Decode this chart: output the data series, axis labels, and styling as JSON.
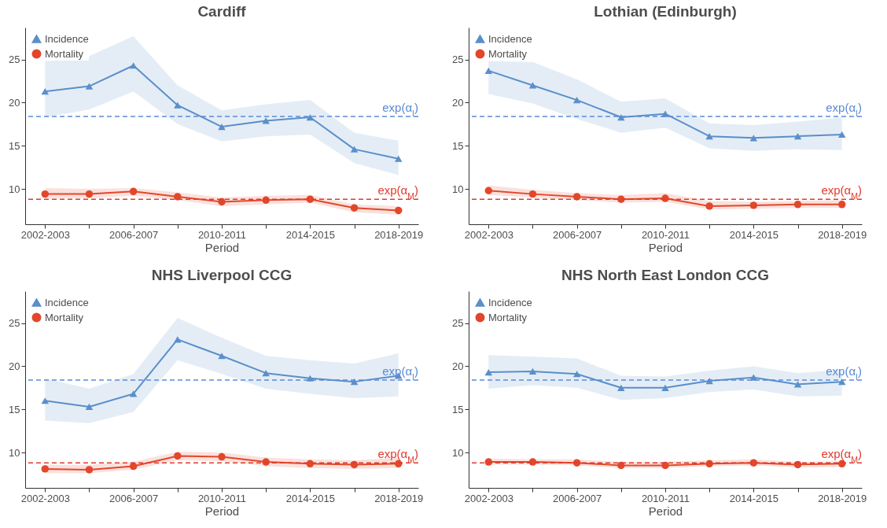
{
  "chart_data": [
    {
      "type": "line",
      "title": "Cardiff",
      "xlabel": "Period",
      "categories": [
        "2002-2003",
        null,
        "2006-2007",
        null,
        "2010-2011",
        null,
        "2014-2015",
        null,
        "2018-2019"
      ],
      "ylim": [
        5.9,
        28.7
      ],
      "yticks": [
        10,
        15,
        20,
        25
      ],
      "grid": false,
      "legend": "top left",
      "line_style": "solid",
      "series": [
        {
          "name": "Incidence",
          "color": "#5a8fca",
          "marker": "triangle",
          "values": [
            21.3,
            21.9,
            24.3,
            19.7,
            17.2,
            17.9,
            18.3,
            14.6,
            13.5
          ],
          "lower": [
            18.3,
            19.2,
            21.3,
            17.5,
            15.5,
            16.1,
            16.3,
            13.0,
            11.6
          ],
          "upper": [
            24.8,
            25.4,
            27.7,
            22.0,
            19.1,
            19.8,
            20.3,
            16.5,
            15.6
          ]
        },
        {
          "name": "Mortality",
          "color": "#e2472b",
          "marker": "circle",
          "values": [
            9.4,
            9.4,
            9.7,
            9.1,
            8.5,
            8.7,
            8.8,
            7.8,
            7.5
          ],
          "lower": [
            8.9,
            8.9,
            9.2,
            8.7,
            8.0,
            8.2,
            8.4,
            7.3,
            7.0
          ],
          "upper": [
            10.1,
            10.0,
            10.1,
            9.6,
            9.0,
            9.2,
            9.3,
            8.2,
            8.0
          ]
        }
      ],
      "ref_lines": [
        {
          "axis": "y",
          "value": 18.4,
          "label": "exp(α$_{I}$)",
          "color": "#5b8ad6",
          "line_style": "dashed"
        },
        {
          "axis": "y",
          "value": 8.8,
          "label": "exp(α$_{M}$)",
          "color": "#e03a2d",
          "line_style": "dashed"
        }
      ]
    },
    {
      "type": "line",
      "title": "Lothian (Edinburgh)",
      "xlabel": "Period",
      "categories": [
        "2002-2003",
        null,
        "2006-2007",
        null,
        "2010-2011",
        null,
        "2014-2015",
        null,
        "2018-2019"
      ],
      "ylim": [
        5.9,
        28.7
      ],
      "yticks": [
        10,
        15,
        20,
        25
      ],
      "grid": false,
      "legend": "top left",
      "line_style": "solid",
      "series": [
        {
          "name": "Incidence",
          "color": "#5a8fca",
          "marker": "triangle",
          "values": [
            23.7,
            22.0,
            20.3,
            18.3,
            18.7,
            16.1,
            15.9,
            16.1,
            16.3
          ],
          "lower": [
            21.0,
            19.9,
            18.1,
            16.5,
            17.1,
            14.7,
            14.4,
            14.6,
            14.5
          ],
          "upper": [
            24.8,
            24.7,
            22.7,
            20.1,
            20.5,
            17.6,
            17.4,
            17.8,
            18.3
          ]
        },
        {
          "name": "Mortality",
          "color": "#e2472b",
          "marker": "circle",
          "values": [
            9.8,
            9.4,
            9.1,
            8.8,
            8.9,
            8.0,
            8.1,
            8.2,
            8.2
          ],
          "lower": [
            9.3,
            9.0,
            8.7,
            8.4,
            8.5,
            7.6,
            7.7,
            7.8,
            7.8
          ],
          "upper": [
            10.4,
            9.9,
            9.5,
            9.3,
            9.5,
            8.6,
            8.5,
            8.6,
            8.7
          ]
        }
      ],
      "ref_lines": [
        {
          "axis": "y",
          "value": 18.4,
          "label": "exp(α$_{I}$)",
          "color": "#5b8ad6",
          "line_style": "dashed"
        },
        {
          "axis": "y",
          "value": 8.8,
          "label": "exp(α$_{M}$)",
          "color": "#e03a2d",
          "line_style": "dashed"
        }
      ]
    },
    {
      "type": "line",
      "title": "NHS Liverpool CCG",
      "xlabel": "Period",
      "categories": [
        "2002-2003",
        null,
        "2006-2007",
        null,
        "2010-2011",
        null,
        "2014-2015",
        null,
        "2018-2019"
      ],
      "ylim": [
        5.9,
        28.7
      ],
      "yticks": [
        10,
        15,
        20,
        25
      ],
      "grid": false,
      "legend": "top left",
      "line_style": "solid",
      "series": [
        {
          "name": "Incidence",
          "color": "#5a8fca",
          "marker": "triangle",
          "values": [
            16.0,
            15.3,
            16.8,
            23.1,
            21.2,
            19.2,
            18.6,
            18.2,
            18.9
          ],
          "lower": [
            13.7,
            13.4,
            14.7,
            20.7,
            19.1,
            17.4,
            16.8,
            16.3,
            16.5
          ],
          "upper": [
            18.6,
            17.4,
            19.1,
            25.6,
            23.3,
            21.2,
            20.7,
            20.3,
            21.5
          ]
        },
        {
          "name": "Mortality",
          "color": "#e2472b",
          "marker": "circle",
          "values": [
            8.1,
            8.0,
            8.4,
            9.6,
            9.5,
            8.9,
            8.7,
            8.6,
            8.7
          ],
          "lower": [
            7.6,
            7.6,
            8.0,
            9.1,
            9.0,
            8.4,
            8.2,
            8.1,
            8.2
          ],
          "upper": [
            8.6,
            8.6,
            8.9,
            10.1,
            10.0,
            9.4,
            9.2,
            9.1,
            9.4
          ]
        }
      ],
      "ref_lines": [
        {
          "axis": "y",
          "value": 18.4,
          "label": "exp(α$_{I}$)",
          "color": "#5b8ad6",
          "line_style": "dashed"
        },
        {
          "axis": "y",
          "value": 8.8,
          "label": "exp(α$_{M}$)",
          "color": "#e03a2d",
          "line_style": "dashed"
        }
      ]
    },
    {
      "type": "line",
      "title": "NHS North East London CCG",
      "xlabel": "Period",
      "categories": [
        "2002-2003",
        null,
        "2006-2007",
        null,
        "2010-2011",
        null,
        "2014-2015",
        null,
        "2018-2019"
      ],
      "ylim": [
        5.9,
        28.7
      ],
      "yticks": [
        10,
        15,
        20,
        25
      ],
      "grid": false,
      "legend": "top left",
      "line_style": "solid",
      "series": [
        {
          "name": "Incidence",
          "color": "#5a8fca",
          "marker": "triangle",
          "values": [
            19.3,
            19.4,
            19.1,
            17.5,
            17.5,
            18.3,
            18.7,
            17.9,
            18.2
          ],
          "lower": [
            17.4,
            17.8,
            17.5,
            16.1,
            16.3,
            17.0,
            17.3,
            16.5,
            16.6
          ],
          "upper": [
            21.3,
            21.1,
            20.9,
            18.9,
            18.8,
            19.5,
            20.0,
            19.2,
            19.6
          ]
        },
        {
          "name": "Mortality",
          "color": "#e2472b",
          "marker": "circle",
          "values": [
            8.9,
            8.9,
            8.8,
            8.5,
            8.5,
            8.7,
            8.8,
            8.6,
            8.7
          ],
          "lower": [
            8.6,
            8.6,
            8.5,
            8.2,
            8.2,
            8.4,
            8.5,
            8.3,
            8.3
          ],
          "upper": [
            9.3,
            9.2,
            9.2,
            8.9,
            8.9,
            9.1,
            9.2,
            8.9,
            9.0
          ]
        }
      ],
      "ref_lines": [
        {
          "axis": "y",
          "value": 18.4,
          "label": "exp(α$_{I}$)",
          "color": "#5b8ad6",
          "line_style": "dashed"
        },
        {
          "axis": "y",
          "value": 8.8,
          "label": "exp(α$_{M}$)",
          "color": "#e03a2d",
          "line_style": "dashed"
        }
      ]
    }
  ]
}
